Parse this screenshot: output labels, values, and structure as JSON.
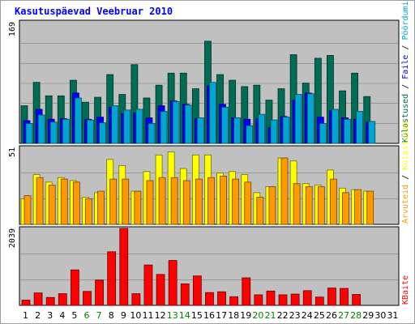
{
  "title": "Kasutuspäevad Veebruar 2010",
  "colors": {
    "frame_bg": "#ffffff",
    "frame_border": "#a0a0a0",
    "plot_bg": "#c0c0c0",
    "grid": "#808080",
    "title": "#0000ff",
    "pages": "#006c54",
    "hits": "#00a6d2",
    "files": "#0000ff",
    "visits": "#ff9900",
    "sites": "#ffff00",
    "kbytes": "#ff0000",
    "bar_light_pages": "#11806a",
    "bar_light_hits": "#00ccff",
    "weekday_label": "#000000",
    "weekend_label": "#008000"
  },
  "right_labels": {
    "top": [
      {
        "text": "Külastused",
        "color": "#006c54"
      },
      {
        "text": " / ",
        "color": "#000000"
      },
      {
        "text": "Faile",
        "color": "#0000ff"
      },
      {
        "text": " / ",
        "color": "#000000"
      },
      {
        "text": "Pöördumisi",
        "color": "#00a6d2"
      }
    ],
    "middle": [
      {
        "text": "Arvuteid",
        "color": "#ff9900"
      },
      {
        "text": " / ",
        "color": "#000000"
      },
      {
        "text": "Külastused",
        "color": "#ffff00"
      }
    ],
    "bottom": [
      {
        "text": "KBaite",
        "color": "#ff0000"
      }
    ]
  },
  "chart_data": [
    {
      "type": "bar",
      "panel": "top",
      "title": "",
      "ylabel": "169",
      "ylim": [
        0,
        169
      ],
      "categories": [
        "1",
        "2",
        "3",
        "4",
        "5",
        "6",
        "7",
        "8",
        "9",
        "10",
        "11",
        "12",
        "13",
        "14",
        "15",
        "16",
        "17",
        "18",
        "19",
        "20",
        "21",
        "22",
        "23",
        "24",
        "25",
        "26",
        "27",
        "28",
        "29",
        "30",
        "31"
      ],
      "weekend": [
        6,
        7,
        13,
        14,
        20,
        21,
        27,
        28
      ],
      "series": [
        {
          "name": "Pöördumisi",
          "color": "#006c54",
          "values": [
            53,
            86,
            67,
            67,
            89,
            58,
            65,
            97,
            69,
            111,
            64,
            82,
            99,
            99,
            77,
            144,
            97,
            89,
            80,
            82,
            61,
            77,
            125,
            85,
            120,
            124,
            74,
            99,
            66,
            0,
            0
          ]
        },
        {
          "name": "Faile",
          "color": "#0000ff",
          "values": [
            32,
            48,
            34,
            35,
            71,
            34,
            37,
            51,
            42,
            43,
            36,
            53,
            60,
            55,
            35,
            81,
            55,
            36,
            34,
            35,
            22,
            38,
            61,
            71,
            37,
            46,
            36,
            34,
            30,
            0,
            0
          ]
        },
        {
          "name": "Külastused",
          "color": "#00a6d2",
          "values": [
            28,
            40,
            30,
            34,
            64,
            33,
            29,
            53,
            47,
            48,
            28,
            45,
            59,
            54,
            36,
            86,
            51,
            36,
            25,
            41,
            33,
            37,
            69,
            70,
            28,
            48,
            34,
            45,
            31,
            0,
            0
          ]
        }
      ]
    },
    {
      "type": "bar",
      "panel": "middle",
      "title": "",
      "ylabel": "51",
      "ylim": [
        0,
        51
      ],
      "categories": [
        "1",
        "2",
        "3",
        "4",
        "5",
        "6",
        "7",
        "8",
        "9",
        "10",
        "11",
        "12",
        "13",
        "14",
        "15",
        "16",
        "17",
        "18",
        "19",
        "20",
        "21",
        "22",
        "23",
        "24",
        "25",
        "26",
        "27",
        "28",
        "29",
        "30",
        "31"
      ],
      "series": [
        {
          "name": "Külastused",
          "color": "#ffff00",
          "values": [
            17,
            33,
            28,
            31,
            29,
            18,
            21,
            43,
            39,
            22,
            35,
            46,
            48,
            37,
            46,
            46,
            34,
            35,
            33,
            21,
            25,
            44,
            42,
            27,
            26,
            36,
            24,
            23,
            22,
            0,
            0
          ]
        },
        {
          "name": "Arvuteid",
          "color": "#ff9900",
          "values": [
            19,
            31,
            26,
            30,
            28,
            17,
            22,
            30,
            30,
            22,
            29,
            31,
            31,
            29,
            30,
            31,
            32,
            30,
            28,
            18,
            25,
            44,
            27,
            25,
            25,
            30,
            21,
            23,
            22,
            0,
            0
          ]
        }
      ]
    },
    {
      "type": "bar",
      "panel": "bottom",
      "title": "",
      "ylabel": "2039",
      "ylim": [
        0,
        2039
      ],
      "categories": [
        "1",
        "2",
        "3",
        "4",
        "5",
        "6",
        "7",
        "8",
        "9",
        "10",
        "11",
        "12",
        "13",
        "14",
        "15",
        "16",
        "17",
        "18",
        "19",
        "20",
        "21",
        "22",
        "23",
        "24",
        "25",
        "26",
        "27",
        "28",
        "29",
        "30",
        "31"
      ],
      "series": [
        {
          "name": "KBaite",
          "color": "#ff0000",
          "values": [
            140,
            330,
            210,
            310,
            940,
            370,
            670,
            1420,
            2039,
            310,
            1070,
            820,
            1190,
            570,
            780,
            340,
            360,
            230,
            730,
            280,
            380,
            280,
            300,
            390,
            220,
            460,
            450,
            290,
            0,
            0,
            0
          ]
        }
      ]
    }
  ]
}
